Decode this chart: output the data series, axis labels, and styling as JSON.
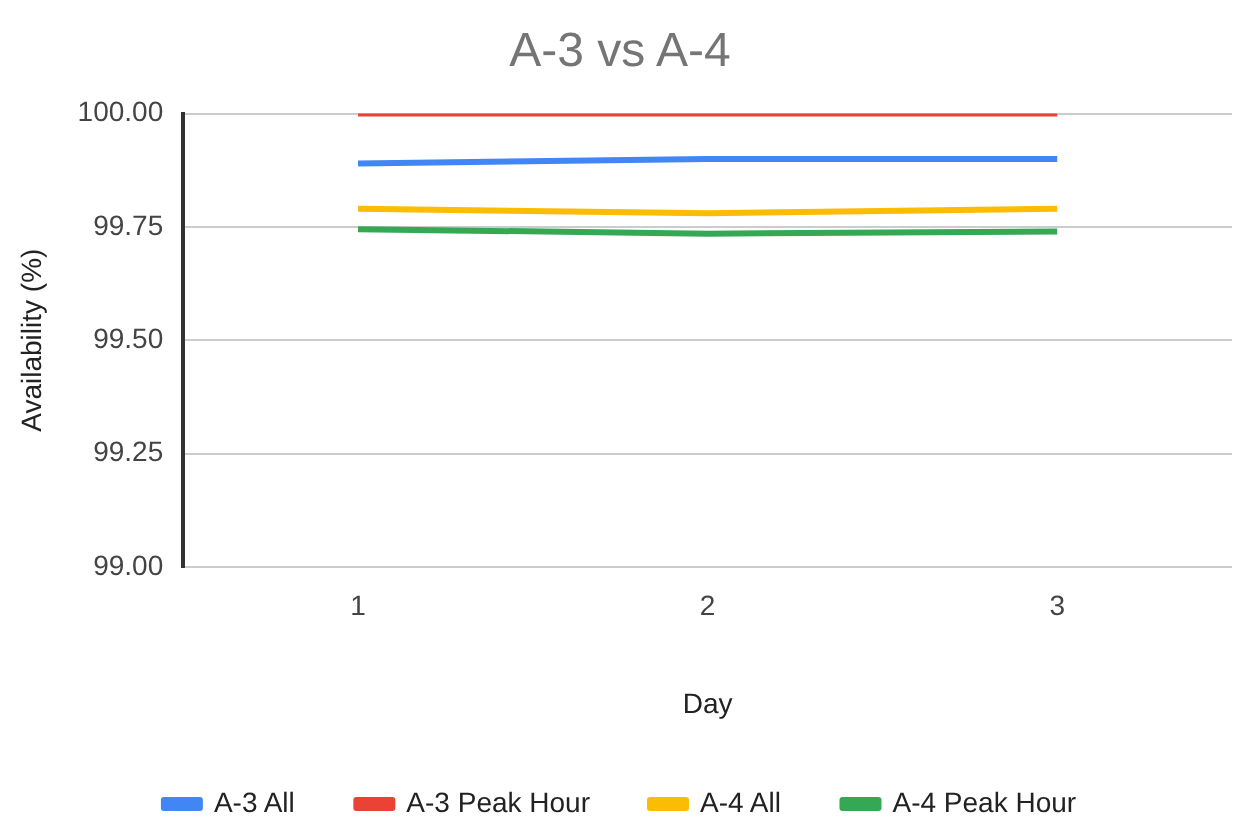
{
  "chart_data": {
    "type": "line",
    "title": "A-3 vs A-4",
    "xlabel": "Day",
    "ylabel": "Availability (%)",
    "categories": [
      "1",
      "2",
      "3"
    ],
    "series": [
      {
        "name": "A-3 All",
        "color": "#4285f4",
        "values": [
          99.89,
          99.9,
          99.9
        ]
      },
      {
        "name": "A-3 Peak Hour",
        "color": "#ea4335",
        "values": [
          100,
          100,
          100
        ]
      },
      {
        "name": "A-4 All",
        "color": "#fbbc04",
        "values": [
          99.79,
          99.78,
          99.79
        ]
      },
      {
        "name": "A-4 Peak Hour",
        "color": "#34a853",
        "values": [
          99.745,
          99.735,
          99.74
        ]
      }
    ],
    "ylim": [
      99,
      100
    ],
    "yticks": [
      {
        "value": 99,
        "label": "99.00"
      },
      {
        "value": 99.25,
        "label": "99.25"
      },
      {
        "value": 99.5,
        "label": "99.50"
      },
      {
        "value": 99.75,
        "label": "99.75"
      },
      {
        "value": 100,
        "label": "100.00"
      }
    ],
    "grid": "y",
    "legend": "bottom",
    "marker": "none",
    "line_style": "solid"
  }
}
